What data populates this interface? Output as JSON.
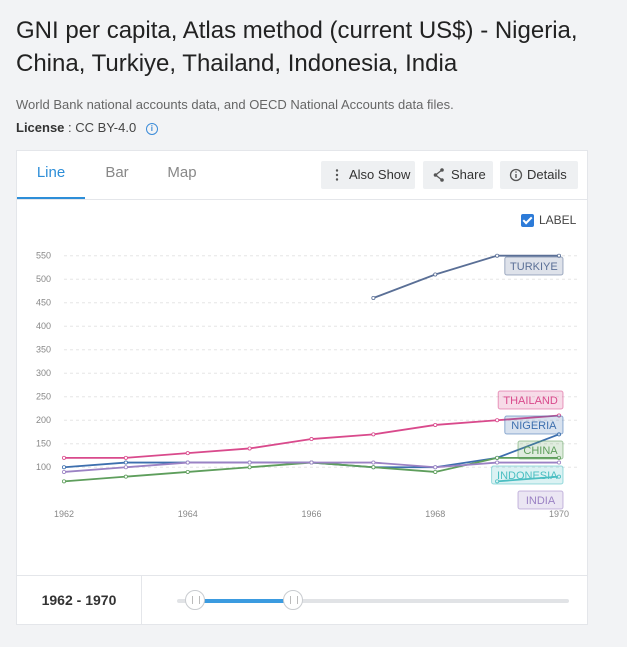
{
  "page": {
    "title": "GNI per capita, Atlas method (current US$) - Nigeria, China, Turkiye, Thailand, Indonesia, India",
    "source": "World Bank national accounts data, and OECD National Accounts data files.",
    "license_label": "License",
    "license_value": ": CC BY-4.0"
  },
  "tabs": [
    "Line",
    "Bar",
    "Map"
  ],
  "toolbar": {
    "also_show": "Also Show",
    "share": "Share",
    "details": "Details"
  },
  "label_toggle": {
    "text": "LABEL",
    "checked": true
  },
  "footer": {
    "range_start": "1962",
    "range_sep": " - ",
    "range_end": "1970",
    "slider_lo": 0.0,
    "slider_hi": 0.16
  },
  "chart_data": {
    "type": "line",
    "x": [
      1962,
      1963,
      1964,
      1965,
      1966,
      1967,
      1968,
      1969,
      1970
    ],
    "xticks": [
      1962,
      1964,
      1966,
      1968,
      1970
    ],
    "yticks": [
      100,
      150,
      200,
      250,
      300,
      350,
      400,
      450,
      500,
      550
    ],
    "ylim": [
      75,
      560
    ],
    "grid": true,
    "series": [
      {
        "name": "TURKIYE",
        "color": "#5a6f96",
        "values": [
          null,
          null,
          null,
          null,
          null,
          460,
          510,
          550,
          550
        ]
      },
      {
        "name": "THAILAND",
        "color": "#d94a8c",
        "values": [
          120,
          120,
          130,
          140,
          160,
          170,
          190,
          200,
          210
        ]
      },
      {
        "name": "NIGERIA",
        "color": "#3d6fae",
        "values": [
          100,
          110,
          110,
          110,
          110,
          100,
          100,
          120,
          170
        ]
      },
      {
        "name": "CHINA",
        "color": "#5e9e5c",
        "values": [
          70,
          80,
          90,
          100,
          110,
          100,
          90,
          120,
          120
        ]
      },
      {
        "name": "INDONESIA",
        "color": "#4bbfc2",
        "values": [
          null,
          null,
          null,
          null,
          null,
          null,
          null,
          70,
          80
        ]
      },
      {
        "name": "INDIA",
        "color": "#9b82c4",
        "values": [
          90,
          100,
          110,
          110,
          110,
          110,
          100,
          110,
          110
        ]
      }
    ]
  }
}
